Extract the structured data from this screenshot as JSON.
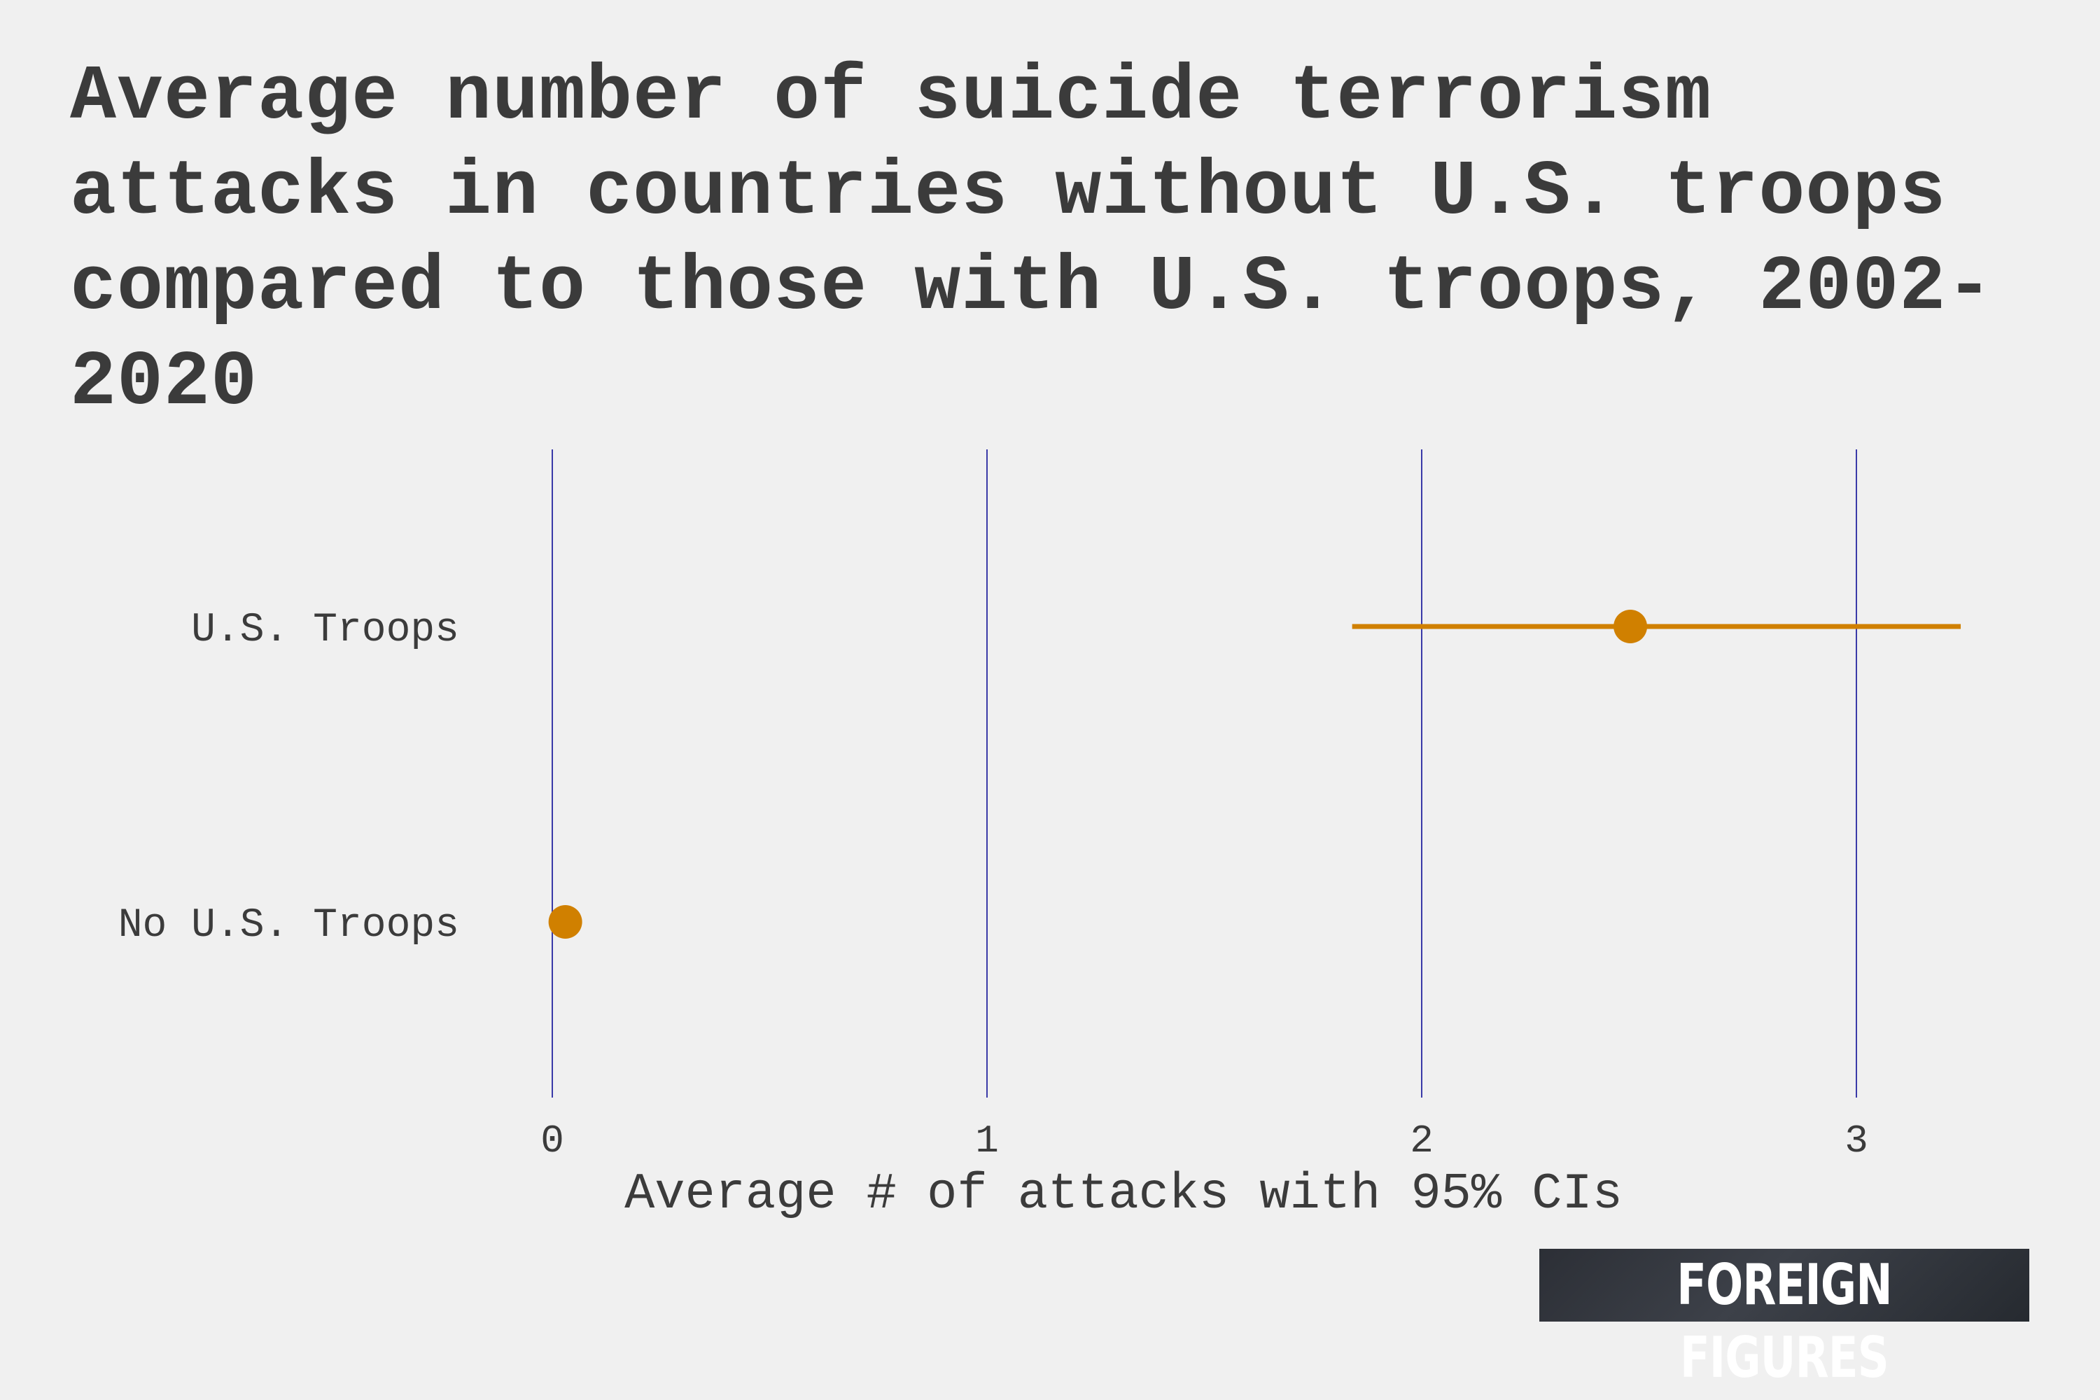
{
  "chart_data": {
    "type": "dot-interval",
    "title": "Average number of suicide terrorism attacks in countries without U.S. troops compared to those with U.S. troops, 2002-2020",
    "xlabel": "Average # of attacks with 95% CIs",
    "ylabel": "",
    "xlim": [
      0,
      3.3
    ],
    "xticks": [
      0,
      1,
      2,
      3
    ],
    "xtick_labels": [
      "0",
      "1",
      "2",
      "3"
    ],
    "grid": "vertical",
    "categories": [
      "U.S. Troops",
      "No U.S. Troops"
    ],
    "points": [
      {
        "category": "U.S. Troops",
        "value": 2.48,
        "ci_low": 1.84,
        "ci_high": 3.24
      },
      {
        "category": "No U.S. Troops",
        "value": 0.03,
        "ci_low": 0.02,
        "ci_high": 0.04
      }
    ]
  },
  "colors": {
    "background": "#f0f0f0",
    "gridline": "#3a3aa8",
    "point": "#d08000",
    "text": "#3b3b3b"
  },
  "branding": {
    "logo_text": "FOREIGN FIGURES"
  }
}
